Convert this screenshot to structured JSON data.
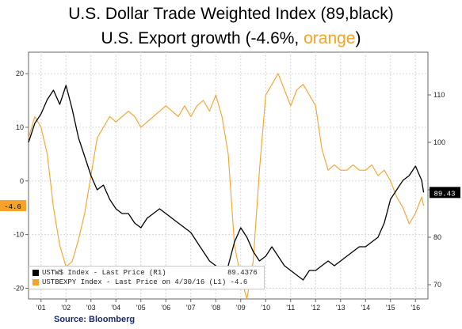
{
  "title": {
    "line1": "U.S. Dollar Trade Weighted Index  (89,black)",
    "line2_prefix": "U.S. Export growth (-4.6%, ",
    "line2_orange": "orange",
    "line2_suffix": ")"
  },
  "source": "Source:  Bloomberg",
  "legend": {
    "usd_label": "USTW$ Index - Last Price (R1)",
    "usd_value": "89.4376",
    "exp_label": "USTBEXPY Index - Last Price on 4/30/16 (L1) -4.6"
  },
  "last_value_tags": {
    "right": "89.43",
    "left": "-4.6"
  },
  "colors": {
    "usd_series": "#000000",
    "export_series": "#f4a22a",
    "grid": "#d8d8d8",
    "axis": "#666666",
    "tag_left_bg": "#f4a22a"
  },
  "chart_data": {
    "type": "line",
    "x_ticks": [
      "'01",
      "'02",
      "'03",
      "'04",
      "'05",
      "'06",
      "'07",
      "'08",
      "'09",
      "'10",
      "'11",
      "'12",
      "'13",
      "'14",
      "'15",
      "'16"
    ],
    "xlim": [
      2000.5,
      2016.5
    ],
    "left_axis": {
      "ylim": [
        -22,
        24
      ],
      "ticks": [
        20,
        10,
        0,
        -10,
        -20
      ],
      "unit": "%"
    },
    "right_axis": {
      "ylim": [
        67,
        119
      ],
      "ticks": [
        110,
        100,
        90,
        80,
        70
      ]
    },
    "grid": true,
    "legend_position": "bottom-left",
    "series": [
      {
        "name": "USTW$ Index - Last Price (R1)",
        "axis": "right",
        "color": "#000000",
        "x": [
          2000.5,
          2000.75,
          2001.0,
          2001.25,
          2001.5,
          2001.75,
          2002.0,
          2002.25,
          2002.5,
          2002.75,
          2003.0,
          2003.25,
          2003.5,
          2003.75,
          2004.0,
          2004.25,
          2004.5,
          2004.75,
          2005.0,
          2005.25,
          2005.5,
          2005.75,
          2006.0,
          2006.25,
          2006.5,
          2006.75,
          2007.0,
          2007.25,
          2007.5,
          2007.75,
          2008.0,
          2008.25,
          2008.5,
          2008.75,
          2009.0,
          2009.25,
          2009.5,
          2009.75,
          2010.0,
          2010.25,
          2010.5,
          2010.75,
          2011.0,
          2011.25,
          2011.5,
          2011.75,
          2012.0,
          2012.25,
          2012.5,
          2012.75,
          2013.0,
          2013.25,
          2013.5,
          2013.75,
          2014.0,
          2014.25,
          2014.5,
          2014.75,
          2015.0,
          2015.25,
          2015.5,
          2015.75,
          2016.0,
          2016.25,
          2016.33
        ],
        "y": [
          100,
          104,
          106,
          109,
          111,
          108,
          112,
          107,
          101,
          97,
          93,
          90,
          91,
          88,
          86,
          85,
          85,
          83,
          82,
          84,
          85,
          86,
          85,
          84,
          83,
          82,
          81,
          79,
          77,
          75,
          74,
          73,
          74,
          79,
          82,
          80,
          77,
          75,
          76,
          78,
          76,
          74,
          73,
          72,
          71,
          73,
          73,
          74,
          75,
          74,
          75,
          76,
          77,
          78,
          78,
          79,
          80,
          83,
          88,
          90,
          92,
          93,
          95,
          92,
          89.44
        ]
      },
      {
        "name": "USTBEXPY Index - Last Price on 4/30/16 (L1) -4.6",
        "axis": "left",
        "color": "#f4a22a",
        "x": [
          2000.5,
          2000.75,
          2001.0,
          2001.25,
          2001.5,
          2001.75,
          2002.0,
          2002.25,
          2002.5,
          2002.75,
          2003.0,
          2003.25,
          2003.5,
          2003.75,
          2004.0,
          2004.25,
          2004.5,
          2004.75,
          2005.0,
          2005.25,
          2005.5,
          2005.75,
          2006.0,
          2006.25,
          2006.5,
          2006.75,
          2007.0,
          2007.25,
          2007.5,
          2007.75,
          2008.0,
          2008.25,
          2008.5,
          2008.75,
          2009.0,
          2009.25,
          2009.5,
          2009.75,
          2010.0,
          2010.25,
          2010.5,
          2010.75,
          2011.0,
          2011.25,
          2011.5,
          2011.75,
          2012.0,
          2012.25,
          2012.5,
          2012.75,
          2013.0,
          2013.25,
          2013.5,
          2013.75,
          2014.0,
          2014.25,
          2014.5,
          2014.75,
          2015.0,
          2015.25,
          2015.5,
          2015.75,
          2016.0,
          2016.25,
          2016.33
        ],
        "y": [
          8,
          12,
          10,
          5,
          -5,
          -12,
          -16,
          -15,
          -11,
          -6,
          1,
          8,
          10,
          12,
          11,
          12,
          13,
          12,
          10,
          11,
          12,
          13,
          14,
          13,
          12,
          14,
          12,
          14,
          15,
          13,
          16,
          12,
          5,
          -12,
          -18,
          -22,
          -15,
          2,
          16,
          18,
          20,
          17,
          14,
          17,
          18,
          16,
          14,
          6,
          2,
          3,
          2,
          2,
          3,
          2,
          2,
          3,
          1,
          2,
          0,
          -3,
          -5,
          -8,
          -6,
          -3,
          -4.6
        ]
      }
    ]
  }
}
